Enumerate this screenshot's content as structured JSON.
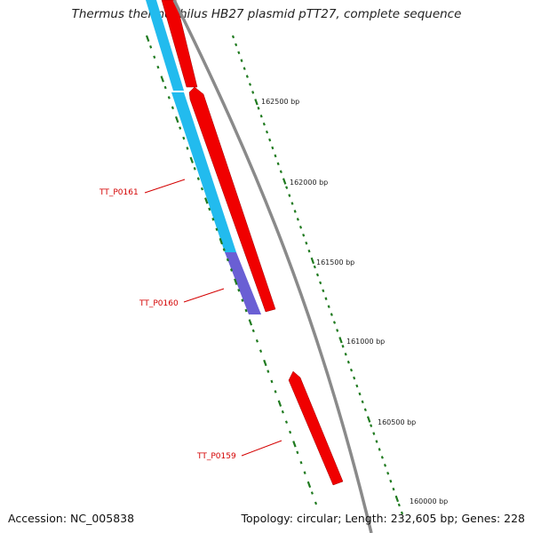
{
  "title": "Thermus thermophilus HB27 plasmid pTT27, complete sequence",
  "footer": {
    "accession": "Accession: NC_005838",
    "summary": "Topology: circular; Length: 232,605 bp; Genes: 228"
  },
  "scale_labels": [
    "162500 bp",
    "162000 bp",
    "161500 bp",
    "161000 bp",
    "160500 bp",
    "160000 bp"
  ],
  "genes": [
    {
      "label": "TT_P0161",
      "color": "#f00000"
    },
    {
      "label": "TT_P0160",
      "color": "#f00000"
    },
    {
      "label": "TT_P0159",
      "color": "#f00000"
    }
  ],
  "colors": {
    "gene_red": "#f00000",
    "cog_cyan": "#22bbee",
    "cog_purple": "#6a5fd4",
    "backbone": "#8a8a8a",
    "tick_green": "#1f7a1f",
    "label_red": "#d40000"
  }
}
